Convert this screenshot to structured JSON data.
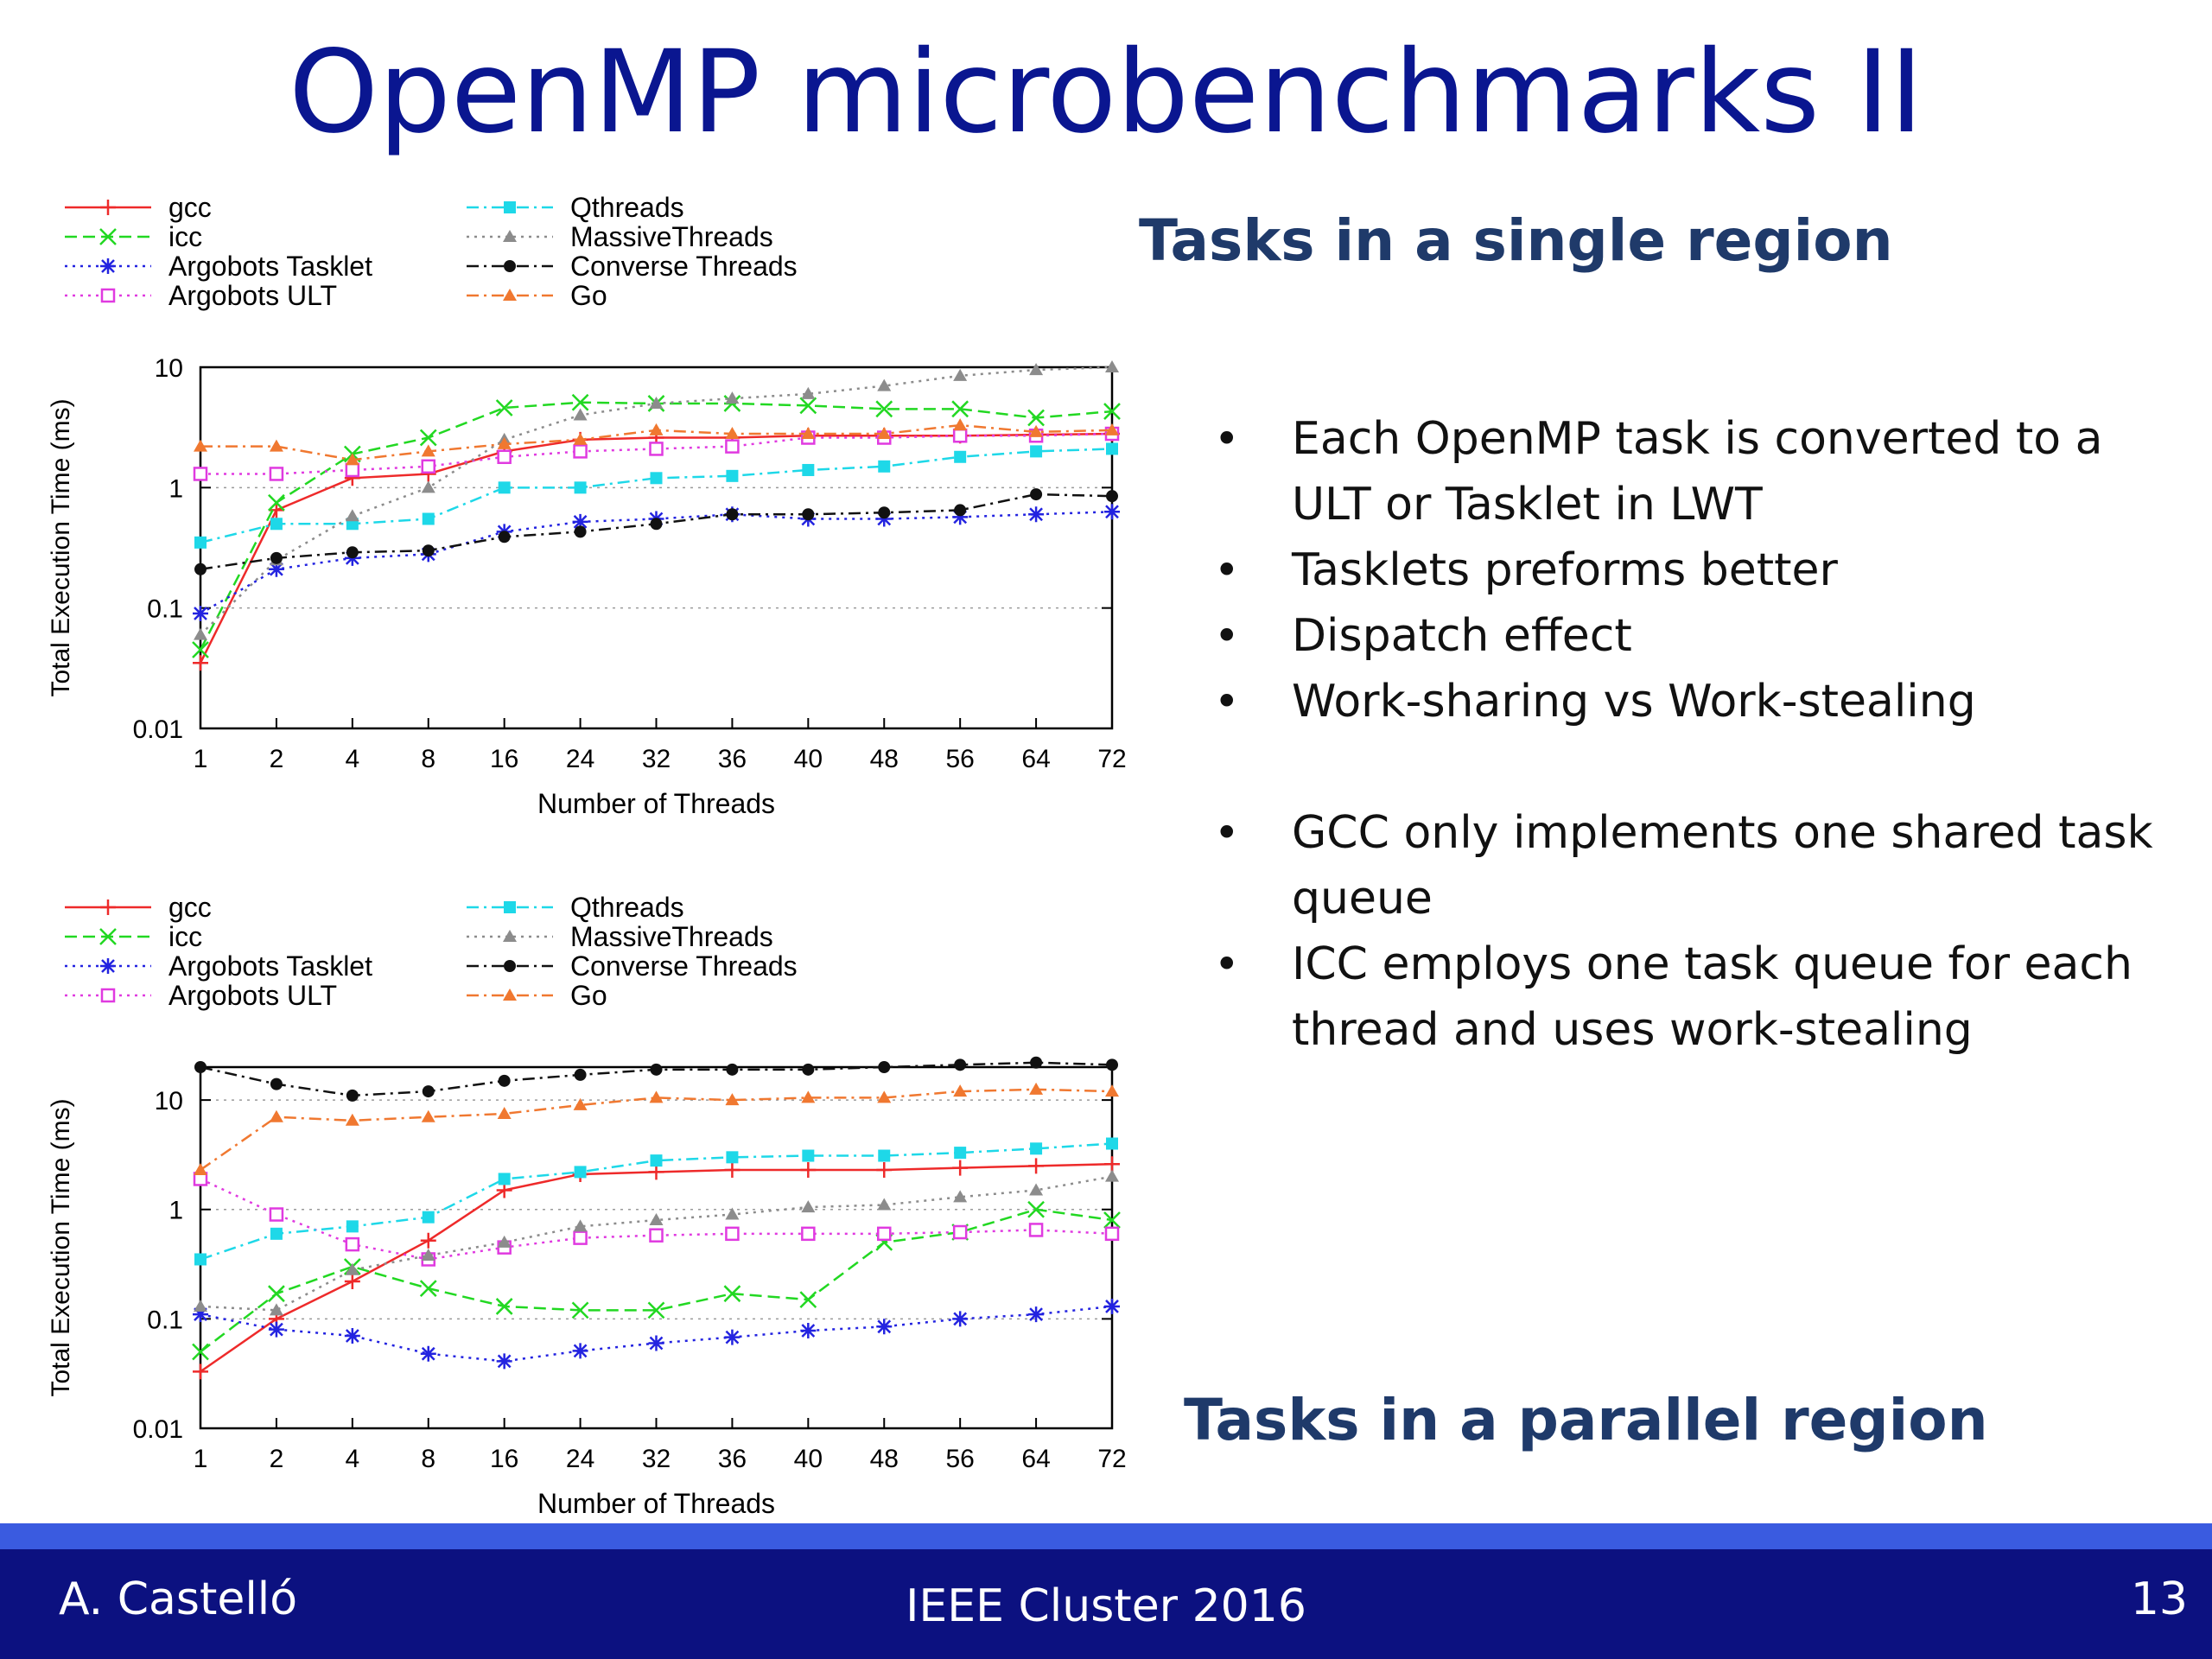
{
  "slide": {
    "title": "OpenMP microbenchmarks II",
    "subtitle_top": "Tasks in a single region",
    "subtitle_bottom": "Tasks in a parallel region",
    "bullets": [
      "Each OpenMP task is converted to a ULT or Tasklet in LWT",
      "Tasklets preforms better",
      "Dispatch effect",
      "Work-sharing vs Work-stealing",
      "GCC only implements one shared task queue",
      "ICC employs one task queue for each thread and uses work-stealing"
    ],
    "footer": {
      "author": "A. Castelló",
      "event": "IEEE Cluster 2016",
      "page": "13"
    }
  },
  "chart_data": [
    {
      "type": "line",
      "title": "",
      "xlabel": "Number of Threads",
      "ylabel": "Total Execution Time (ms)",
      "yscale": "log",
      "ylim": [
        0.01,
        10
      ],
      "yticks": [
        "10",
        "1",
        "0.1",
        "0.01"
      ],
      "grid": "horizontal dotted",
      "legend_position": "top",
      "categories": [
        "1",
        "2",
        "4",
        "8",
        "16",
        "24",
        "32",
        "36",
        "40",
        "48",
        "56",
        "64",
        "72"
      ],
      "series": [
        {
          "name": "gcc",
          "color": "#ee2a2a",
          "marker": "plus",
          "dash": "solid",
          "values": [
            0.035,
            0.65,
            1.2,
            1.3,
            2.0,
            2.5,
            2.6,
            2.6,
            2.7,
            2.7,
            2.7,
            2.75,
            2.8
          ]
        },
        {
          "name": "icc",
          "color": "#22d822",
          "marker": "x",
          "dash": "dashed",
          "values": [
            0.045,
            0.75,
            1.9,
            2.6,
            4.6,
            5.1,
            5.0,
            5.0,
            4.8,
            4.5,
            4.5,
            3.8,
            4.3
          ]
        },
        {
          "name": "Argobots Tasklet",
          "color": "#2323e0",
          "marker": "star",
          "dash": "dotted",
          "values": [
            0.09,
            0.21,
            0.26,
            0.28,
            0.43,
            0.52,
            0.55,
            0.6,
            0.55,
            0.55,
            0.57,
            0.6,
            0.63
          ]
        },
        {
          "name": "Argobots ULT",
          "color": "#e03ae0",
          "marker": "square",
          "dash": "dotted",
          "values": [
            1.3,
            1.3,
            1.4,
            1.5,
            1.8,
            2.0,
            2.1,
            2.2,
            2.6,
            2.6,
            2.7,
            2.7,
            2.8
          ]
        },
        {
          "name": "Qthreads",
          "color": "#1ed8e8",
          "marker": "filled-square",
          "dash": "dashdot",
          "values": [
            0.35,
            0.5,
            0.5,
            0.55,
            1.0,
            1.0,
            1.2,
            1.25,
            1.4,
            1.5,
            1.8,
            2.0,
            2.1
          ]
        },
        {
          "name": "MassiveThreads",
          "color": "#8c8c8c",
          "marker": "triangle",
          "dash": "dotted",
          "values": [
            0.06,
            0.25,
            0.58,
            1.0,
            2.5,
            4.0,
            5.0,
            5.5,
            6.0,
            7.0,
            8.5,
            9.5,
            10.0
          ]
        },
        {
          "name": "Converse Threads",
          "color": "#111111",
          "marker": "circle",
          "dash": "dashdot",
          "values": [
            0.21,
            0.26,
            0.29,
            0.3,
            0.39,
            0.43,
            0.5,
            0.6,
            0.6,
            0.62,
            0.65,
            0.88,
            0.85
          ]
        },
        {
          "name": "Go",
          "color": "#f07830",
          "marker": "triangle",
          "dash": "dashdot",
          "values": [
            2.2,
            2.2,
            1.7,
            2.0,
            2.3,
            2.5,
            3.0,
            2.8,
            2.8,
            2.8,
            3.3,
            2.9,
            3.0
          ]
        }
      ]
    },
    {
      "type": "line",
      "title": "",
      "xlabel": "Number of Threads",
      "ylabel": "Total Execution Time (ms)",
      "yscale": "log",
      "ylim": [
        0.01,
        20
      ],
      "yticks": [
        "10",
        "1",
        "0.1",
        "0.01"
      ],
      "grid": "horizontal dotted",
      "legend_position": "top",
      "categories": [
        "1",
        "2",
        "4",
        "8",
        "16",
        "24",
        "32",
        "36",
        "40",
        "48",
        "56",
        "64",
        "72"
      ],
      "series": [
        {
          "name": "gcc",
          "color": "#ee2a2a",
          "marker": "plus",
          "dash": "solid",
          "values": [
            0.033,
            0.1,
            0.22,
            0.52,
            1.5,
            2.1,
            2.2,
            2.3,
            2.3,
            2.3,
            2.4,
            2.5,
            2.6
          ]
        },
        {
          "name": "icc",
          "color": "#22d822",
          "marker": "x",
          "dash": "dashed",
          "values": [
            0.05,
            0.17,
            0.3,
            0.19,
            0.13,
            0.12,
            0.12,
            0.17,
            0.15,
            0.5,
            0.62,
            1.0,
            0.8
          ]
        },
        {
          "name": "Argobots Tasklet",
          "color": "#2323e0",
          "marker": "star",
          "dash": "dotted",
          "values": [
            0.11,
            0.08,
            0.07,
            0.048,
            0.041,
            0.051,
            0.06,
            0.068,
            0.078,
            0.085,
            0.1,
            0.11,
            0.13
          ]
        },
        {
          "name": "Argobots ULT",
          "color": "#e03ae0",
          "marker": "square",
          "dash": "dotted",
          "values": [
            1.9,
            0.9,
            0.48,
            0.35,
            0.45,
            0.55,
            0.58,
            0.6,
            0.6,
            0.6,
            0.62,
            0.65,
            0.6
          ]
        },
        {
          "name": "Qthreads",
          "color": "#1ed8e8",
          "marker": "filled-square",
          "dash": "dashdot",
          "values": [
            0.35,
            0.6,
            0.7,
            0.85,
            1.9,
            2.2,
            2.8,
            3.0,
            3.1,
            3.1,
            3.3,
            3.6,
            4.0
          ]
        },
        {
          "name": "MassiveThreads",
          "color": "#8c8c8c",
          "marker": "triangle",
          "dash": "dotted",
          "values": [
            0.13,
            0.12,
            0.28,
            0.38,
            0.5,
            0.7,
            0.8,
            0.9,
            1.05,
            1.1,
            1.3,
            1.5,
            2.0
          ]
        },
        {
          "name": "Converse Threads",
          "color": "#111111",
          "marker": "circle",
          "dash": "dashdot",
          "values": [
            20.0,
            14.0,
            11.0,
            12.0,
            15.0,
            17.0,
            19.0,
            19.0,
            19.0,
            20.0,
            21.0,
            22.0,
            21.0
          ]
        },
        {
          "name": "Go",
          "color": "#f07830",
          "marker": "triangle",
          "dash": "dashdot",
          "values": [
            2.3,
            7.0,
            6.5,
            7.0,
            7.5,
            9.0,
            10.5,
            10.0,
            10.5,
            10.5,
            12.0,
            12.5,
            12.0
          ]
        }
      ]
    }
  ]
}
